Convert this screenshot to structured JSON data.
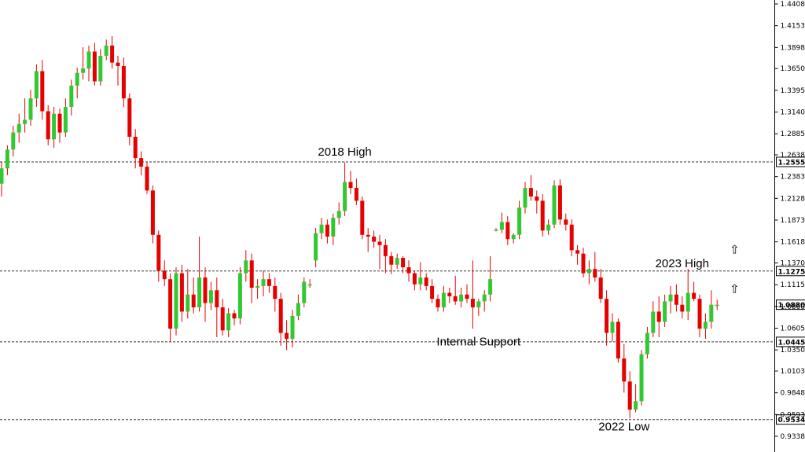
{
  "chart_data": {
    "type": "candlestick",
    "title": "",
    "xlabel": "",
    "ylabel": "",
    "ylim": [
      0.9338,
      1.4408
    ],
    "y_ticks": [
      "1.44080",
      "1.41530",
      "1.38980",
      "1.36505",
      "1.33955",
      "1.31405",
      "1.28855",
      "1.26380",
      "1.23830",
      "1.21280",
      "1.18730",
      "1.16180",
      "1.13705",
      "1.11155",
      "1.08605",
      "1.06055",
      "1.03505",
      "1.01030",
      "0.98480",
      "0.95930",
      "0.93380"
    ],
    "levels": [
      {
        "value": 1.25555,
        "label": "1.25555"
      },
      {
        "value": 1.12759,
        "label": "1.12759"
      },
      {
        "value": 1.04453,
        "label": "1.04453"
      },
      {
        "value": 0.95341,
        "label": "0.95341"
      }
    ],
    "current_price": {
      "value": 1.08808,
      "label": "1.08808"
    },
    "annotations": [
      {
        "text": "2018 High",
        "index": 59,
        "price": 1.263
      },
      {
        "text": "2023 High",
        "index": 117,
        "price": 1.132
      },
      {
        "text": "Internal Support",
        "index": 82,
        "price": 1.0405
      },
      {
        "text": "2022 Low",
        "index": 107,
        "price": 0.9405
      }
    ],
    "arrows": [
      {
        "symbol": "⇧",
        "index": 126,
        "price": 1.148
      },
      {
        "symbol": "⇧",
        "index": 126,
        "price": 1.102
      }
    ],
    "colors": {
      "up": "#32c832",
      "down": "#e60000",
      "wick": "#e60000",
      "level": "#333333",
      "text": "#000000"
    },
    "candles": [
      [
        1.23,
        1.255,
        1.215,
        1.248
      ],
      [
        1.248,
        1.275,
        1.24,
        1.27
      ],
      [
        1.27,
        1.298,
        1.262,
        1.29
      ],
      [
        1.29,
        1.312,
        1.278,
        1.3
      ],
      [
        1.3,
        1.33,
        1.29,
        1.305
      ],
      [
        1.305,
        1.34,
        1.298,
        1.33
      ],
      [
        1.33,
        1.37,
        1.32,
        1.362
      ],
      [
        1.362,
        1.375,
        1.305,
        1.315
      ],
      [
        1.315,
        1.322,
        1.275,
        1.282
      ],
      [
        1.282,
        1.32,
        1.272,
        1.312
      ],
      [
        1.312,
        1.318,
        1.278,
        1.29
      ],
      [
        1.29,
        1.33,
        1.285,
        1.32
      ],
      [
        1.32,
        1.352,
        1.31,
        1.345
      ],
      [
        1.345,
        1.366,
        1.33,
        1.36
      ],
      [
        1.36,
        1.39,
        1.352,
        1.365
      ],
      [
        1.365,
        1.392,
        1.35,
        1.385
      ],
      [
        1.385,
        1.395,
        1.345,
        1.35
      ],
      [
        1.35,
        1.388,
        1.345,
        1.38
      ],
      [
        1.38,
        1.399,
        1.375,
        1.392
      ],
      [
        1.392,
        1.403,
        1.365,
        1.372
      ],
      [
        1.372,
        1.38,
        1.345,
        1.368
      ],
      [
        1.368,
        1.378,
        1.32,
        1.33
      ],
      [
        1.33,
        1.336,
        1.275,
        1.285
      ],
      [
        1.285,
        1.294,
        1.248,
        1.26
      ],
      [
        1.26,
        1.268,
        1.24,
        1.25
      ],
      [
        1.25,
        1.255,
        1.218,
        1.222
      ],
      [
        1.222,
        1.228,
        1.16,
        1.17
      ],
      [
        1.17,
        1.175,
        1.115,
        1.128
      ],
      [
        1.128,
        1.14,
        1.11,
        1.118
      ],
      [
        1.118,
        1.125,
        1.045,
        1.06
      ],
      [
        1.06,
        1.132,
        1.052,
        1.125
      ],
      [
        1.125,
        1.135,
        1.068,
        1.08
      ],
      [
        1.08,
        1.13,
        1.072,
        1.1
      ],
      [
        1.1,
        1.12,
        1.078,
        1.085
      ],
      [
        1.085,
        1.168,
        1.08,
        1.12
      ],
      [
        1.12,
        1.132,
        1.068,
        1.09
      ],
      [
        1.09,
        1.115,
        1.082,
        1.105
      ],
      [
        1.105,
        1.12,
        1.05,
        1.085
      ],
      [
        1.085,
        1.095,
        1.052,
        1.058
      ],
      [
        1.058,
        1.084,
        1.05,
        1.078
      ],
      [
        1.078,
        1.082,
        1.064,
        1.072
      ],
      [
        1.072,
        1.132,
        1.065,
        1.125
      ],
      [
        1.125,
        1.152,
        1.115,
        1.14
      ],
      [
        1.14,
        1.148,
        1.09,
        1.108
      ],
      [
        1.108,
        1.118,
        1.095,
        1.11
      ],
      [
        1.11,
        1.128,
        1.098,
        1.118
      ],
      [
        1.118,
        1.125,
        1.102,
        1.11
      ],
      [
        1.11,
        1.12,
        1.08,
        1.095
      ],
      [
        1.095,
        1.102,
        1.04,
        1.055
      ],
      [
        1.055,
        1.07,
        1.035,
        1.048
      ],
      [
        1.048,
        1.082,
        1.038,
        1.075
      ],
      [
        1.075,
        1.1,
        1.07,
        1.09
      ],
      [
        1.09,
        1.12,
        1.085,
        1.115
      ],
      [
        1.112,
        1.118,
        1.108,
        1.112
      ],
      [
        1.14,
        1.178,
        1.132,
        1.172
      ],
      [
        1.172,
        1.19,
        1.165,
        1.182
      ],
      [
        1.182,
        1.188,
        1.16,
        1.168
      ],
      [
        1.168,
        1.195,
        1.158,
        1.19
      ],
      [
        1.19,
        1.208,
        1.182,
        1.198
      ],
      [
        1.198,
        1.255,
        1.192,
        1.232
      ],
      [
        1.232,
        1.245,
        1.218,
        1.225
      ],
      [
        1.225,
        1.236,
        1.205,
        1.21
      ],
      [
        1.21,
        1.215,
        1.165,
        1.17
      ],
      [
        1.17,
        1.178,
        1.15,
        1.168
      ],
      [
        1.168,
        1.175,
        1.155,
        1.162
      ],
      [
        1.162,
        1.17,
        1.13,
        1.158
      ],
      [
        1.158,
        1.165,
        1.125,
        1.145
      ],
      [
        1.145,
        1.15,
        1.124,
        1.135
      ],
      [
        1.135,
        1.148,
        1.13,
        1.143
      ],
      [
        1.143,
        1.145,
        1.125,
        1.132
      ],
      [
        1.132,
        1.14,
        1.115,
        1.125
      ],
      [
        1.125,
        1.128,
        1.105,
        1.112
      ],
      [
        1.112,
        1.138,
        1.105,
        1.12
      ],
      [
        1.12,
        1.125,
        1.105,
        1.11
      ],
      [
        1.11,
        1.118,
        1.09,
        1.095
      ],
      [
        1.095,
        1.1,
        1.08,
        1.085
      ],
      [
        1.085,
        1.11,
        1.08,
        1.102
      ],
      [
        1.102,
        1.108,
        1.09,
        1.098
      ],
      [
        1.098,
        1.122,
        1.088,
        1.092
      ],
      [
        1.092,
        1.108,
        1.085,
        1.1
      ],
      [
        1.1,
        1.112,
        1.09,
        1.095
      ],
      [
        1.095,
        1.14,
        1.06,
        1.085
      ],
      [
        1.085,
        1.095,
        1.075,
        1.092
      ],
      [
        1.092,
        1.105,
        1.08,
        1.1
      ],
      [
        1.1,
        1.145,
        1.092,
        1.118
      ],
      [
        1.176,
        1.178,
        1.174,
        1.176
      ],
      [
        1.176,
        1.196,
        1.172,
        1.185
      ],
      [
        1.185,
        1.192,
        1.158,
        1.165
      ],
      [
        1.165,
        1.172,
        1.16,
        1.17
      ],
      [
        1.17,
        1.21,
        1.165,
        1.202
      ],
      [
        1.202,
        1.232,
        1.195,
        1.225
      ],
      [
        1.225,
        1.24,
        1.21,
        1.215
      ],
      [
        1.215,
        1.222,
        1.195,
        1.21
      ],
      [
        1.21,
        1.218,
        1.168,
        1.175
      ],
      [
        1.175,
        1.188,
        1.17,
        1.182
      ],
      [
        1.182,
        1.234,
        1.178,
        1.228
      ],
      [
        1.228,
        1.235,
        1.182,
        1.188
      ],
      [
        1.188,
        1.195,
        1.175,
        1.182
      ],
      [
        1.182,
        1.188,
        1.145,
        1.152
      ],
      [
        1.152,
        1.158,
        1.135,
        1.148
      ],
      [
        1.148,
        1.155,
        1.12,
        1.125
      ],
      [
        1.125,
        1.14,
        1.112,
        1.13
      ],
      [
        1.13,
        1.15,
        1.115,
        1.12
      ],
      [
        1.12,
        1.13,
        1.09,
        1.095
      ],
      [
        1.095,
        1.105,
        1.04,
        1.055
      ],
      [
        1.055,
        1.078,
        1.045,
        1.068
      ],
      [
        1.068,
        1.072,
        1.02,
        1.025
      ],
      [
        1.025,
        1.042,
        0.985,
        0.998
      ],
      [
        0.998,
        1.01,
        0.955,
        0.965
      ],
      [
        0.965,
        0.995,
        0.962,
        0.975
      ],
      [
        0.975,
        1.035,
        0.97,
        1.03
      ],
      [
        1.03,
        1.062,
        1.025,
        1.055
      ],
      [
        1.055,
        1.092,
        1.05,
        1.08
      ],
      [
        1.08,
        1.098,
        1.05,
        1.068
      ],
      [
        1.068,
        1.1,
        1.062,
        1.092
      ],
      [
        1.092,
        1.11,
        1.078,
        1.1
      ],
      [
        1.1,
        1.112,
        1.08,
        1.088
      ],
      [
        1.088,
        1.098,
        1.072,
        1.08
      ],
      [
        1.08,
        1.13,
        1.07,
        1.102
      ],
      [
        1.102,
        1.115,
        1.092,
        1.095
      ],
      [
        1.095,
        1.1,
        1.05,
        1.06
      ],
      [
        1.06,
        1.078,
        1.048,
        1.068
      ],
      [
        1.068,
        1.105,
        1.06,
        1.088
      ],
      [
        1.088,
        1.094,
        1.082,
        1.088
      ]
    ]
  }
}
